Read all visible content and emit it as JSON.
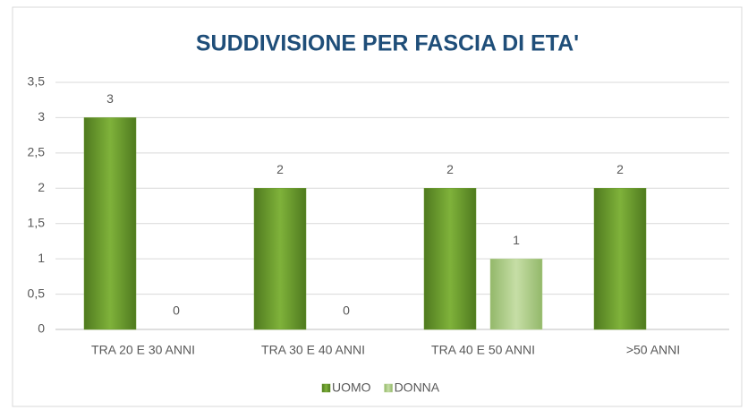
{
  "chart_data": {
    "type": "bar",
    "title": "SUDDIVISIONE PER FASCIA DI ETA'",
    "categories": [
      "TRA 20 E 30 ANNI",
      "TRA 30 E 40 ANNI",
      "TRA 40 E 50 ANNI",
      ">50 ANNI"
    ],
    "series": [
      {
        "name": "UOMO",
        "color": "#6a9a2e",
        "values": [
          3,
          2,
          2,
          2
        ]
      },
      {
        "name": "DONNA",
        "color": "#b3d08f",
        "values": [
          0,
          0,
          1,
          null
        ]
      }
    ],
    "ylim": [
      0,
      3.5
    ],
    "yticks": [
      0,
      {
        "value": 0.5,
        "label": "0,5"
      },
      1,
      {
        "value": 1.5,
        "label": "1,5"
      },
      2,
      {
        "value": 2.5,
        "label": "2,5"
      },
      3,
      {
        "value": 3.5,
        "label": "3,5"
      }
    ],
    "grid": true,
    "legend": "bottom"
  }
}
